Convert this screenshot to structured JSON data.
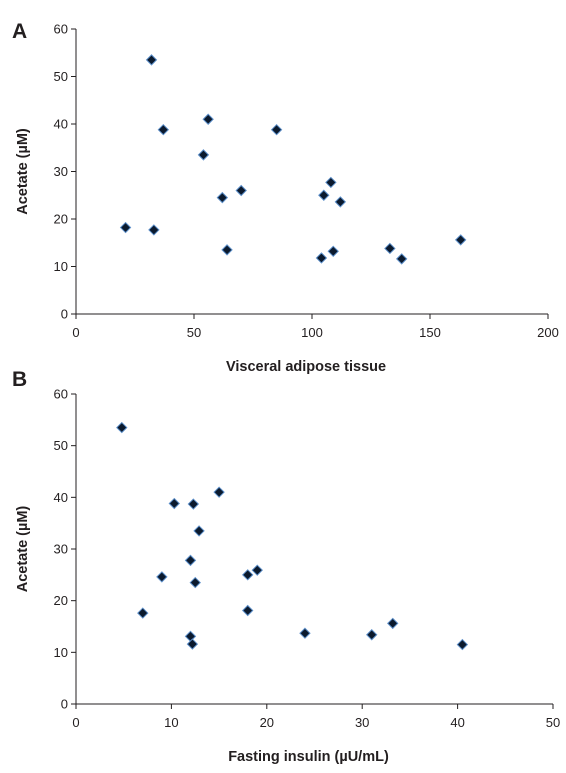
{
  "chart_data": [
    {
      "type": "scatter",
      "panel_label": "A",
      "xlabel": "Visceral adipose tissue",
      "ylabel": "Acetate (µM)",
      "xlim": [
        0,
        200
      ],
      "ylim": [
        0,
        60
      ],
      "x_ticks": [
        0,
        50,
        100,
        150,
        200
      ],
      "y_ticks": [
        0,
        10,
        20,
        30,
        40,
        50,
        60
      ],
      "grid": false,
      "marker": "diamond",
      "marker_color": "#0b1a2e",
      "marker_edge_color": "#5b8ec9",
      "series": [
        {
          "x": [
            32,
            21,
            33,
            37,
            56,
            54,
            62,
            64,
            70,
            85,
            105,
            108,
            109,
            112,
            104,
            133,
            138,
            163
          ],
          "y": [
            53.5,
            18.2,
            17.7,
            38.8,
            41.0,
            33.5,
            24.5,
            13.5,
            26.0,
            38.8,
            25.0,
            27.7,
            13.2,
            23.6,
            11.8,
            13.8,
            11.6,
            15.6
          ]
        }
      ]
    },
    {
      "type": "scatter",
      "panel_label": "B",
      "xlabel": "Fasting insulin (µU/mL)",
      "ylabel": "Acetate (µM)",
      "xlim": [
        0,
        50
      ],
      "ylim": [
        0,
        60
      ],
      "x_ticks": [
        0,
        10,
        20,
        30,
        40,
        50
      ],
      "y_ticks": [
        0,
        10,
        20,
        30,
        40,
        50,
        60
      ],
      "grid": false,
      "marker": "diamond",
      "marker_color": "#0b1a2e",
      "marker_edge_color": "#5b8ec9",
      "series": [
        {
          "x": [
            4.8,
            7.0,
            9.0,
            10.3,
            12.0,
            12.3,
            12.5,
            12.9,
            12.0,
            12.2,
            15.0,
            18.0,
            18.0,
            19.0,
            24.0,
            31.0,
            33.2,
            40.5
          ],
          "y": [
            53.5,
            17.6,
            24.6,
            38.8,
            27.8,
            38.7,
            23.5,
            33.5,
            13.1,
            11.6,
            41.0,
            25.0,
            18.1,
            25.9,
            13.7,
            13.4,
            15.6,
            11.5
          ]
        }
      ]
    }
  ]
}
